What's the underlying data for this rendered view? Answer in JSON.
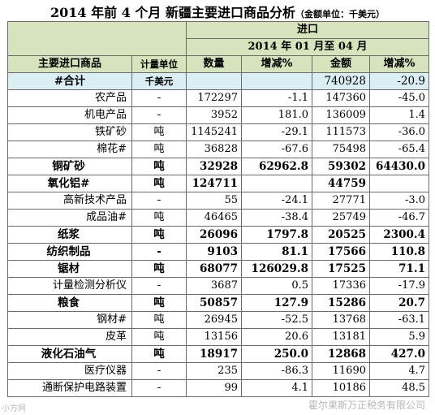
{
  "title": "2014 年前 4 个月 新疆主要进口商品分析",
  "unit_note": "（金额单位：千美元）",
  "header": {
    "group": "进口",
    "period": "2014 年 01 月至 04 月",
    "columns": [
      "主要进口商品",
      "计量单位",
      "数量",
      "增减%",
      "金额",
      "增减%"
    ]
  },
  "total": {
    "name": "#合计",
    "unit": "千美元",
    "qty": "",
    "qty_chg": "",
    "amount": "740928",
    "amount_chg": "-20.9"
  },
  "rows": [
    {
      "name": "农产品",
      "unit": "-",
      "qty": "172297",
      "qty_chg": "-1.1",
      "amount": "147360",
      "amount_chg": "-45.0",
      "bold": false
    },
    {
      "name": "机电产品",
      "unit": "-",
      "qty": "3952",
      "qty_chg": "181.0",
      "amount": "136009",
      "amount_chg": "1.4",
      "bold": false
    },
    {
      "name": "铁矿砂",
      "unit": "吨",
      "qty": "1145241",
      "qty_chg": "-29.1",
      "amount": "111573",
      "amount_chg": "-36.0",
      "bold": false
    },
    {
      "name": "棉花#",
      "unit": "吨",
      "qty": "36828",
      "qty_chg": "-67.6",
      "amount": "75498",
      "amount_chg": "-65.4",
      "bold": false
    },
    {
      "name": "铜矿砂",
      "unit": "吨",
      "qty": "32928",
      "qty_chg": "62962.8",
      "amount": "59302",
      "amount_chg": "64430.0",
      "bold": true
    },
    {
      "name": "氧化铝#",
      "unit": "吨",
      "qty": "124711",
      "qty_chg": "",
      "amount": "44759",
      "amount_chg": "",
      "bold": true
    },
    {
      "name": "高新技术产品",
      "unit": "-",
      "qty": "55",
      "qty_chg": "-24.1",
      "amount": "27771",
      "amount_chg": "-3.0",
      "bold": false
    },
    {
      "name": "成品油#",
      "unit": "吨",
      "qty": "46465",
      "qty_chg": "-38.4",
      "amount": "25749",
      "amount_chg": "-46.7",
      "bold": false
    },
    {
      "name": "纸浆",
      "unit": "吨",
      "qty": "26096",
      "qty_chg": "1797.8",
      "amount": "20525",
      "amount_chg": "2300.4",
      "bold": true
    },
    {
      "name": "纺织制品",
      "unit": "-",
      "qty": "9103",
      "qty_chg": "81.1",
      "amount": "17566",
      "amount_chg": "110.8",
      "bold": true
    },
    {
      "name": "锯材",
      "unit": "吨",
      "qty": "68077",
      "qty_chg": "126029.8",
      "amount": "17525",
      "amount_chg": "71.1",
      "bold": true
    },
    {
      "name": "计量检测分析仪",
      "unit": "-",
      "qty": "3687",
      "qty_chg": "0.5",
      "amount": "17336",
      "amount_chg": "-17.9",
      "bold": false
    },
    {
      "name": "粮食",
      "unit": "吨",
      "qty": "50857",
      "qty_chg": "127.9",
      "amount": "15286",
      "amount_chg": "20.7",
      "bold": true
    },
    {
      "name": "钢材#",
      "unit": "吨",
      "qty": "26945",
      "qty_chg": "-52.5",
      "amount": "13768",
      "amount_chg": "-63.1",
      "bold": false
    },
    {
      "name": "皮革",
      "unit": "吨",
      "qty": "13156",
      "qty_chg": "20.6",
      "amount": "13181",
      "amount_chg": "5.9",
      "bold": false
    },
    {
      "name": "液化石油气",
      "unit": "吨",
      "qty": "18917",
      "qty_chg": "250.0",
      "amount": "12868",
      "amount_chg": "427.0",
      "bold": true
    },
    {
      "name": "医疗仪器",
      "unit": "-",
      "qty": "235",
      "qty_chg": "-86.3",
      "amount": "11690",
      "amount_chg": "4.7",
      "bold": false
    },
    {
      "name": "通断保护电路装置",
      "unit": "-",
      "qty": "99",
      "qty_chg": "4.1",
      "amount": "10186",
      "amount_chg": "48.5",
      "bold": false
    }
  ],
  "watermark": "霍尔果斯万正税务有限公司",
  "watermark_left": "小方网"
}
